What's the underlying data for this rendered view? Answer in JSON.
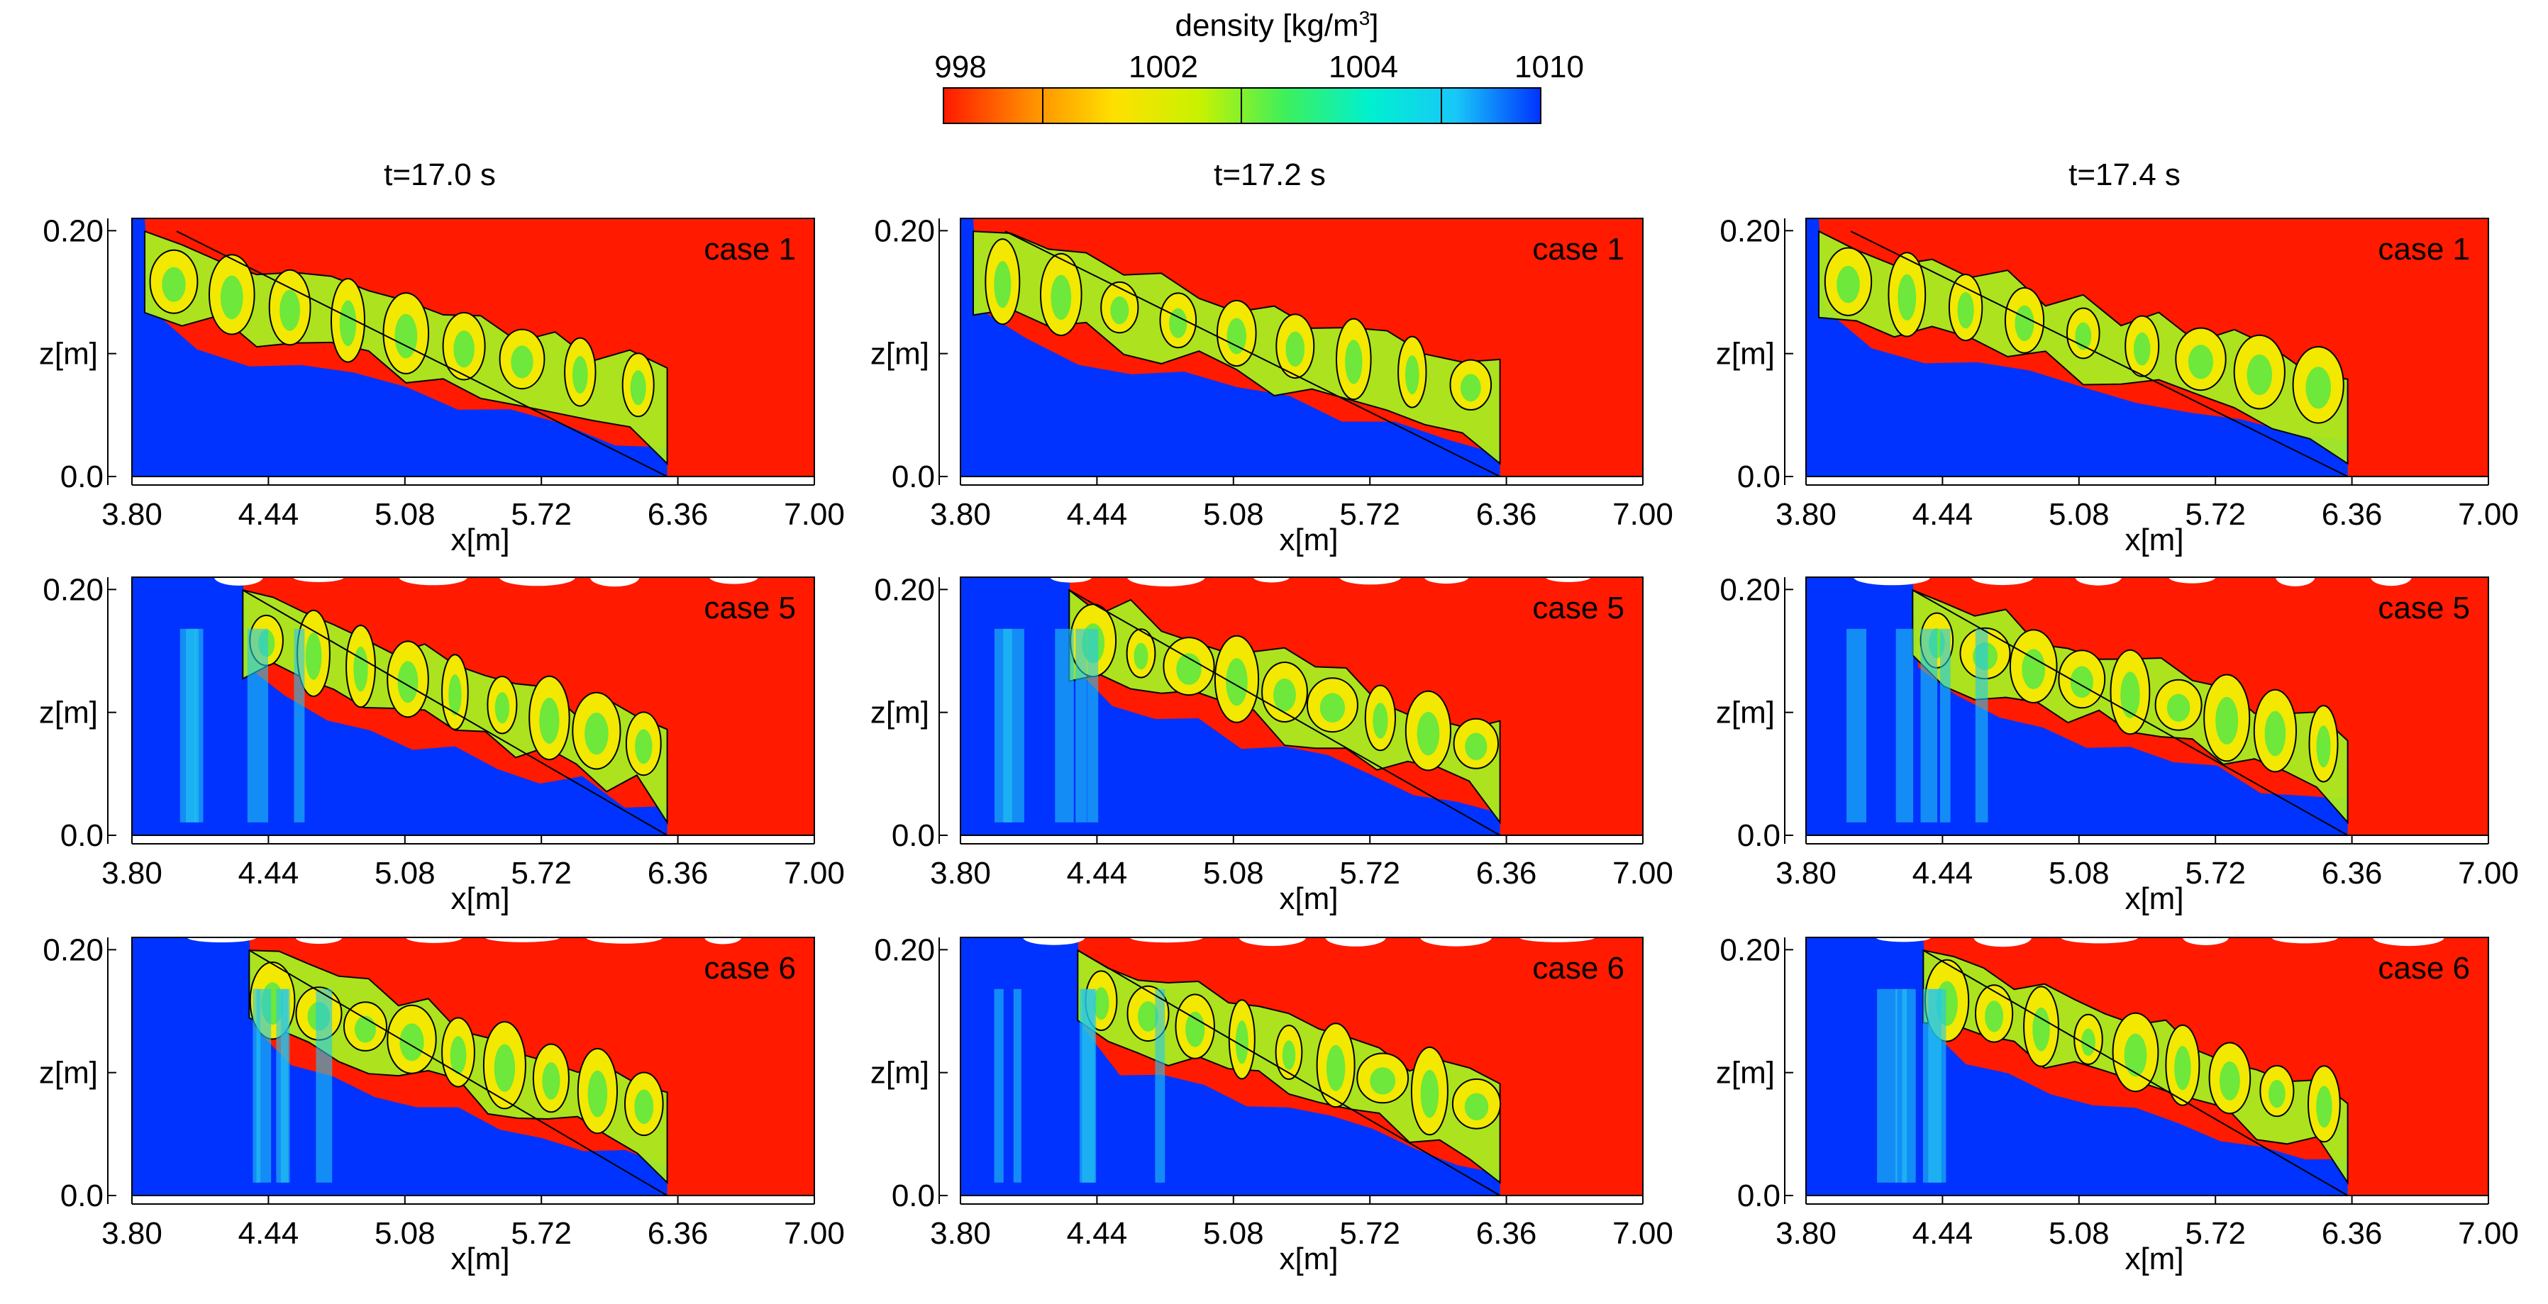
{
  "colorbar": {
    "title_main": "density [kg/m",
    "title_sup": "3",
    "title_end": "]",
    "tick_labels": [
      "998",
      "1002",
      "1004",
      "1010"
    ],
    "colors": [
      "#ff1a00",
      "#ff8a00",
      "#ffe000",
      "#c8f200",
      "#3ef05a",
      "#00f0d0",
      "#18c8f8",
      "#0033ff"
    ]
  },
  "time_labels": [
    "t=17.0 s",
    "t=17.2 s",
    "t=17.4 s"
  ],
  "case_labels": [
    "case 1",
    "case 5",
    "case 6"
  ],
  "chart_data": {
    "type": "heatmap",
    "title": "density [kg/m3]",
    "xlabel": "x[m]",
    "ylabel": "z[m]",
    "xlim": [
      3.8,
      7.0
    ],
    "ylim": [
      0.0,
      0.21
    ],
    "x_ticks": [
      "3.80",
      "4.44",
      "5.08",
      "5.72",
      "6.36",
      "7.00"
    ],
    "y_ticks": [
      "0.0",
      "0.20"
    ],
    "colorbar_range": [
      998,
      1010
    ],
    "colorbar_ticks": [
      998,
      1002,
      1004,
      1010
    ],
    "columns": [
      "t=17.0 s",
      "t=17.2 s",
      "t=17.4 s"
    ],
    "rows": [
      "case 1",
      "case 5",
      "case 6"
    ],
    "fluid_colors": {
      "light": "#ff1a00",
      "dense": "#0033ff",
      "mixed": "#a8ee20"
    },
    "panels": [
      {
        "case": "case 1",
        "time": "t=17.0 s",
        "front_top_x": 4.01,
        "front_bottom_x": 6.31,
        "lock_edge_x": 3.86,
        "surface_gaps": false
      },
      {
        "case": "case 1",
        "time": "t=17.2 s",
        "front_top_x": 4.01,
        "front_bottom_x": 6.33,
        "lock_edge_x": 3.86,
        "surface_gaps": false
      },
      {
        "case": "case 1",
        "time": "t=17.4 s",
        "front_top_x": 4.01,
        "front_bottom_x": 6.34,
        "lock_edge_x": 3.86,
        "surface_gaps": false
      },
      {
        "case": "case 5",
        "time": "t=17.0 s",
        "front_top_x": 4.32,
        "front_bottom_x": 6.31,
        "lock_edge_x": 4.32,
        "surface_gaps": true
      },
      {
        "case": "case 5",
        "time": "t=17.2 s",
        "front_top_x": 4.31,
        "front_bottom_x": 6.33,
        "lock_edge_x": 4.31,
        "surface_gaps": true
      },
      {
        "case": "case 5",
        "time": "t=17.4 s",
        "front_top_x": 4.3,
        "front_bottom_x": 6.34,
        "lock_edge_x": 4.3,
        "surface_gaps": true
      },
      {
        "case": "case 6",
        "time": "t=17.0 s",
        "front_top_x": 4.35,
        "front_bottom_x": 6.31,
        "lock_edge_x": 4.35,
        "surface_gaps": true
      },
      {
        "case": "case 6",
        "time": "t=17.2 s",
        "front_top_x": 4.35,
        "front_bottom_x": 6.33,
        "lock_edge_x": 4.35,
        "surface_gaps": true
      },
      {
        "case": "case 6",
        "time": "t=17.4 s",
        "front_top_x": 4.35,
        "front_bottom_x": 6.34,
        "lock_edge_x": 4.35,
        "surface_gaps": true
      }
    ]
  }
}
